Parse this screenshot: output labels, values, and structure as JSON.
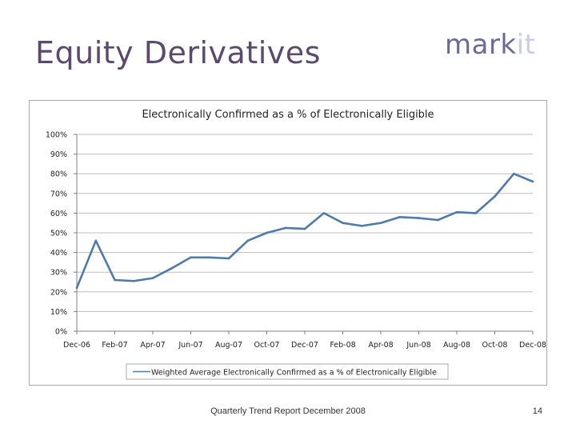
{
  "slide": {
    "title": "Equity Derivatives",
    "logo_text_main": "mark",
    "logo_text_accent": "it",
    "footer": "Quarterly Trend Report December 2008",
    "page_number": "14"
  },
  "colors": {
    "title": "#5b4a6e",
    "line": "#4e7bab",
    "grid": "#bdbdbd",
    "axis": "#808080"
  },
  "chart_data": {
    "type": "line",
    "title": "Electronically Confirmed as a % of Electronically Eligible",
    "xlabel": "",
    "ylabel": "",
    "ylim": [
      0,
      100
    ],
    "y_ticks": [
      "0%",
      "10%",
      "20%",
      "30%",
      "40%",
      "50%",
      "60%",
      "70%",
      "80%",
      "90%",
      "100%"
    ],
    "x_tick_labels": [
      "Dec-06",
      "Feb-07",
      "Apr-07",
      "Jun-07",
      "Aug-07",
      "Oct-07",
      "Dec-07",
      "Feb-08",
      "Apr-08",
      "Jun-08",
      "Aug-08",
      "Oct-08",
      "Dec-08"
    ],
    "x": [
      "Dec-06",
      "Jan-07",
      "Feb-07",
      "Mar-07",
      "Apr-07",
      "May-07",
      "Jun-07",
      "Jul-07",
      "Aug-07",
      "Sep-07",
      "Oct-07",
      "Nov-07",
      "Dec-07",
      "Jan-08",
      "Feb-08",
      "Mar-08",
      "Apr-08",
      "May-08",
      "Jun-08",
      "Jul-08",
      "Aug-08",
      "Sep-08",
      "Oct-08",
      "Nov-08",
      "Dec-08"
    ],
    "series": [
      {
        "name": "Weighted Average Electronically Confirmed as a % of Electronically Eligible",
        "values": [
          22,
          46,
          26,
          25.5,
          27,
          32,
          37.5,
          37.5,
          37,
          46,
          50,
          52.5,
          52,
          60,
          55,
          53.5,
          55,
          58,
          57.5,
          56.5,
          60.5,
          60,
          68.5,
          80,
          76
        ]
      }
    ],
    "grid": true,
    "legend": "bottom"
  }
}
